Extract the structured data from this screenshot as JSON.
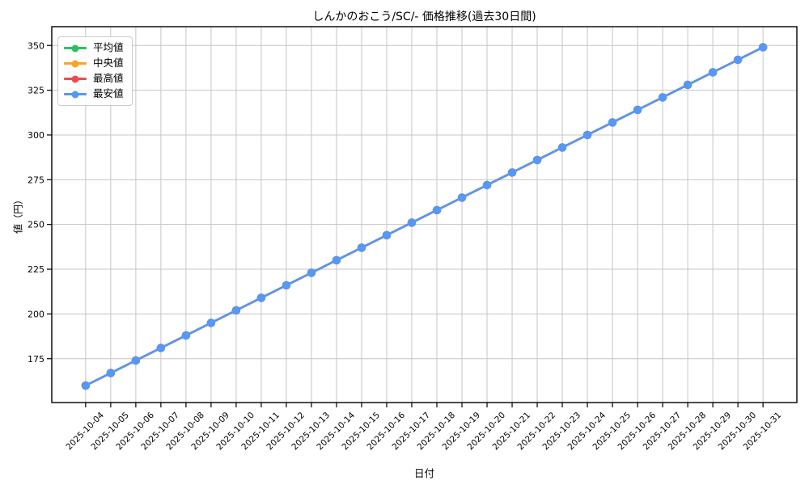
{
  "chart_data": {
    "type": "line",
    "title": "しんかのおこう/SC/- 価格推移(過去30日間)",
    "xlabel": "日付",
    "ylabel": "値（円）",
    "categories": [
      "2025-10-04",
      "2025-10-05",
      "2025-10-06",
      "2025-10-07",
      "2025-10-08",
      "2025-10-09",
      "2025-10-10",
      "2025-10-11",
      "2025-10-12",
      "2025-10-13",
      "2025-10-14",
      "2025-10-15",
      "2025-10-16",
      "2025-10-17",
      "2025-10-18",
      "2025-10-19",
      "2025-10-20",
      "2025-10-21",
      "2025-10-22",
      "2025-10-23",
      "2025-10-24",
      "2025-10-25",
      "2025-10-26",
      "2025-10-27",
      "2025-10-28",
      "2025-10-29",
      "2025-10-30",
      "2025-10-31"
    ],
    "series": [
      {
        "name": "平均値",
        "color": "#2dbe64",
        "values": [
          160,
          167,
          174,
          181,
          188,
          195,
          202,
          209,
          216,
          223,
          230,
          237,
          244,
          251,
          258,
          265,
          272,
          279,
          286,
          293,
          300,
          307,
          314,
          321,
          328,
          335,
          342,
          349
        ]
      },
      {
        "name": "中央値",
        "color": "#fca321",
        "values": [
          160,
          167,
          174,
          181,
          188,
          195,
          202,
          209,
          216,
          223,
          230,
          237,
          244,
          251,
          258,
          265,
          272,
          279,
          286,
          293,
          300,
          307,
          314,
          321,
          328,
          335,
          342,
          349
        ]
      },
      {
        "name": "最高値",
        "color": "#f04a4d",
        "values": [
          160,
          167,
          174,
          181,
          188,
          195,
          202,
          209,
          216,
          223,
          230,
          237,
          244,
          251,
          258,
          265,
          272,
          279,
          286,
          293,
          300,
          307,
          314,
          321,
          328,
          335,
          342,
          349
        ]
      },
      {
        "name": "最安値",
        "color": "#5598f6",
        "values": [
          160,
          167,
          174,
          181,
          188,
          195,
          202,
          209,
          216,
          223,
          230,
          237,
          244,
          251,
          258,
          265,
          272,
          279,
          286,
          293,
          300,
          307,
          314,
          321,
          328,
          335,
          342,
          349
        ]
      }
    ],
    "ylim": [
      150.5,
      360.5
    ],
    "yticks": [
      175,
      200,
      225,
      250,
      275,
      300,
      325,
      350
    ],
    "grid": true,
    "legend_position": "upper left",
    "grid_color": "#c5c5c5",
    "background_color": "#ffffff"
  }
}
